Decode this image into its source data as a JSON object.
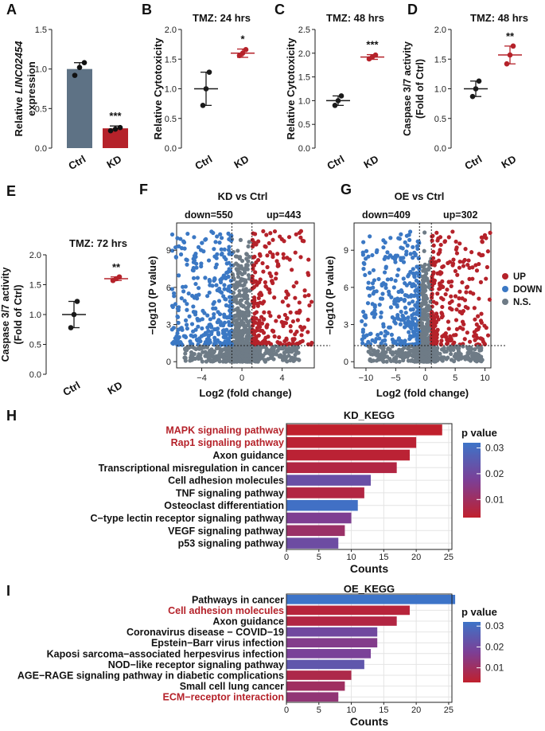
{
  "panels": [
    {
      "id": "A",
      "letter": "A",
      "type": "bar",
      "title": "",
      "ylabel_line1_prefix": "Relative ",
      "ylabel_line1_italic": "LINC02454",
      "ylabel_line2": "expression",
      "categories": [
        "Ctrl",
        "KD"
      ],
      "values": [
        1.0,
        0.25
      ],
      "errors": [
        0.08,
        0.03
      ],
      "points": [
        [
          0.92,
          1.02,
          1.08
        ],
        [
          0.22,
          0.24,
          0.26
        ]
      ],
      "colors": [
        "#5e7285",
        "#b5222a"
      ],
      "ylim": [
        0,
        1.5
      ],
      "ticks": [
        "0.0",
        "0.5",
        "1.0",
        "1.5"
      ],
      "sig": [
        "",
        "***"
      ]
    },
    {
      "id": "B",
      "letter": "B",
      "type": "dot",
      "title": "TMZ: 24 hrs",
      "ylabel": "Relative Cytotoxicity",
      "categories": [
        "Ctrl",
        "KD"
      ],
      "values": [
        1.0,
        1.6
      ],
      "errors": [
        0.28,
        0.07
      ],
      "points": [
        [
          0.72,
          1.0,
          1.28
        ],
        [
          1.56,
          1.6,
          1.66
        ]
      ],
      "colors": [
        "#1a1a1a",
        "#b5222a"
      ],
      "ylim": [
        0,
        2.0
      ],
      "ticks": [
        "0.0",
        "0.5",
        "1.0",
        "1.5",
        "2.0"
      ],
      "sig": [
        "",
        "*"
      ]
    },
    {
      "id": "C",
      "letter": "C",
      "type": "dot",
      "title": "TMZ: 48 hrs",
      "ylabel": "Relative Cytotoxicity",
      "categories": [
        "Ctrl",
        "KD"
      ],
      "values": [
        1.0,
        1.92
      ],
      "errors": [
        0.1,
        0.05
      ],
      "points": [
        [
          0.9,
          1.0,
          1.1
        ],
        [
          1.88,
          1.92,
          1.96
        ]
      ],
      "colors": [
        "#1a1a1a",
        "#b5222a"
      ],
      "ylim": [
        0,
        2.5
      ],
      "ticks": [
        "0.0",
        "0.5",
        "1.0",
        "1.5",
        "2.0",
        "2.5"
      ],
      "sig": [
        "",
        "***"
      ]
    },
    {
      "id": "D",
      "letter": "D",
      "type": "dot",
      "title": "TMZ: 48 hrs",
      "ylabel_line1": "Caspase 3/7 activity",
      "ylabel_line2": "(Fold of Ctrl)",
      "categories": [
        "Ctrl",
        "KD"
      ],
      "values": [
        1.0,
        1.57
      ],
      "errors": [
        0.13,
        0.15
      ],
      "points": [
        [
          0.87,
          1.0,
          1.13
        ],
        [
          1.42,
          1.57,
          1.72
        ]
      ],
      "colors": [
        "#1a1a1a",
        "#b5222a"
      ],
      "ylim": [
        0,
        2.0
      ],
      "ticks": [
        "0.0",
        "0.5",
        "1.0",
        "1.5",
        "2.0"
      ],
      "sig": [
        "",
        "**"
      ]
    },
    {
      "id": "E",
      "letter": "E",
      "type": "dot",
      "title": "TMZ: 72 hrs",
      "ylabel_line1": "Caspase 3/7 activity",
      "ylabel_line2": "(Fold of Ctrl)",
      "categories": [
        "Ctrl",
        "KD"
      ],
      "values": [
        1.0,
        1.6
      ],
      "errors": [
        0.22,
        0.03
      ],
      "points": [
        [
          0.78,
          1.0,
          1.22
        ],
        [
          1.57,
          1.6,
          1.63
        ]
      ],
      "colors": [
        "#1a1a1a",
        "#b5222a"
      ],
      "ylim": [
        0,
        2.0
      ],
      "ticks": [
        "0.0",
        "0.5",
        "1.0",
        "1.5",
        "2.0"
      ],
      "sig": [
        "",
        "**"
      ]
    }
  ],
  "volcano": [
    {
      "letter": "F",
      "title": "KD vs Ctrl",
      "down_label": "down=550",
      "up_label": "up=443",
      "xlabel": "Log2 (fold change)",
      "ylabel": "−log10 (P value)",
      "xlim": [
        -6.5,
        7.2
      ],
      "ylim": [
        -0.5,
        11.2
      ],
      "xticks": [
        -4,
        0,
        4
      ],
      "yticks": [
        0,
        3,
        6,
        9
      ],
      "thresholds_x": [
        -1,
        1
      ],
      "threshold_y": 1.3
    },
    {
      "letter": "G",
      "title": "OE vs Ctrl",
      "down_label": "down=409",
      "up_label": "up=302",
      "xlabel": "Log2 (fold change)",
      "ylabel": "−log10 (P value)",
      "xlim": [
        -12,
        11
      ],
      "ylim": [
        -0.5,
        11.2
      ],
      "xticks": [
        -10,
        -5,
        0,
        5,
        10
      ],
      "yticks": [
        0,
        3,
        6,
        9
      ],
      "thresholds_x": [
        -1,
        1
      ],
      "threshold_y": 1.3
    }
  ],
  "volcano_legend": [
    {
      "label": "UP",
      "color": "#b5222a"
    },
    {
      "label": "DOWN",
      "color": "#3b78c4"
    },
    {
      "label": "N.S.",
      "color": "#6e7b86"
    }
  ],
  "kegg": [
    {
      "letter": "H",
      "title": "KD_KEGG",
      "xlabel": "Counts",
      "xlim": [
        0,
        25.5
      ],
      "xticks": [
        0,
        5,
        10,
        15,
        20,
        25
      ],
      "legend_title": "p value",
      "legend_ticks": [
        "0.03",
        "0.02",
        "0.01"
      ],
      "terms": [
        {
          "label": "MAPK signaling pathway",
          "count": 24,
          "p": 0.003,
          "highlight": true
        },
        {
          "label": "Rap1 signaling pathway",
          "count": 20,
          "p": 0.004,
          "highlight": true
        },
        {
          "label": "Axon guidance",
          "count": 19,
          "p": 0.004,
          "highlight": false
        },
        {
          "label": "Transcriptional misregulation in cancer",
          "count": 17,
          "p": 0.006,
          "highlight": false
        },
        {
          "label": "Cell adhesion molecules",
          "count": 13,
          "p": 0.022,
          "highlight": false
        },
        {
          "label": "TNF signaling pathway",
          "count": 12,
          "p": 0.006,
          "highlight": false
        },
        {
          "label": "Osteoclast differentiation",
          "count": 11,
          "p": 0.031,
          "highlight": false
        },
        {
          "label": "C−type lectin receptor signaling pathway",
          "count": 10,
          "p": 0.017,
          "highlight": false
        },
        {
          "label": "VEGF signaling pathway",
          "count": 9,
          "p": 0.011,
          "highlight": false
        },
        {
          "label": "p53 signaling pathway",
          "count": 8,
          "p": 0.021,
          "highlight": false
        }
      ]
    },
    {
      "letter": "I",
      "title": "OE_KEGG",
      "xlabel": "Counts",
      "xlim": [
        0,
        25.5
      ],
      "xticks": [
        0,
        5,
        10,
        15,
        20,
        25
      ],
      "legend_title": "p value",
      "legend_ticks": [
        "0.03",
        "0.02",
        "0.01"
      ],
      "terms": [
        {
          "label": "Pathways in cancer",
          "count": 26,
          "p": 0.032,
          "highlight": false
        },
        {
          "label": "Cell adhesion molecules",
          "count": 19,
          "p": 0.005,
          "highlight": true
        },
        {
          "label": "Axon guidance",
          "count": 17,
          "p": 0.006,
          "highlight": false
        },
        {
          "label": "Coronavirus disease − COVID−19",
          "count": 14,
          "p": 0.02,
          "highlight": false
        },
        {
          "label": "Epstein−Barr virus infection",
          "count": 14,
          "p": 0.016,
          "highlight": false
        },
        {
          "label": "Kaposi sarcoma−associated herpesvirus infection",
          "count": 13,
          "p": 0.018,
          "highlight": false
        },
        {
          "label": "NOD−like receptor signaling pathway",
          "count": 12,
          "p": 0.024,
          "highlight": false
        },
        {
          "label": "AGE−RAGE signaling pathway in diabetic complications",
          "count": 10,
          "p": 0.007,
          "highlight": false
        },
        {
          "label": "Small cell lung cancer",
          "count": 9,
          "p": 0.01,
          "highlight": false
        },
        {
          "label": "ECM−receptor interaction",
          "count": 8,
          "p": 0.013,
          "highlight": true
        }
      ]
    }
  ],
  "colors": {
    "up": "#b5222a",
    "down": "#3b78c4",
    "ns": "#6e7b86",
    "highlight_text": "#b5222a",
    "axis": "#1a1a1a",
    "grid": "#e4e4e4",
    "grad_low": "#c0202d",
    "grad_mid": "#7c3f96",
    "grad_high": "#3d74c8"
  }
}
